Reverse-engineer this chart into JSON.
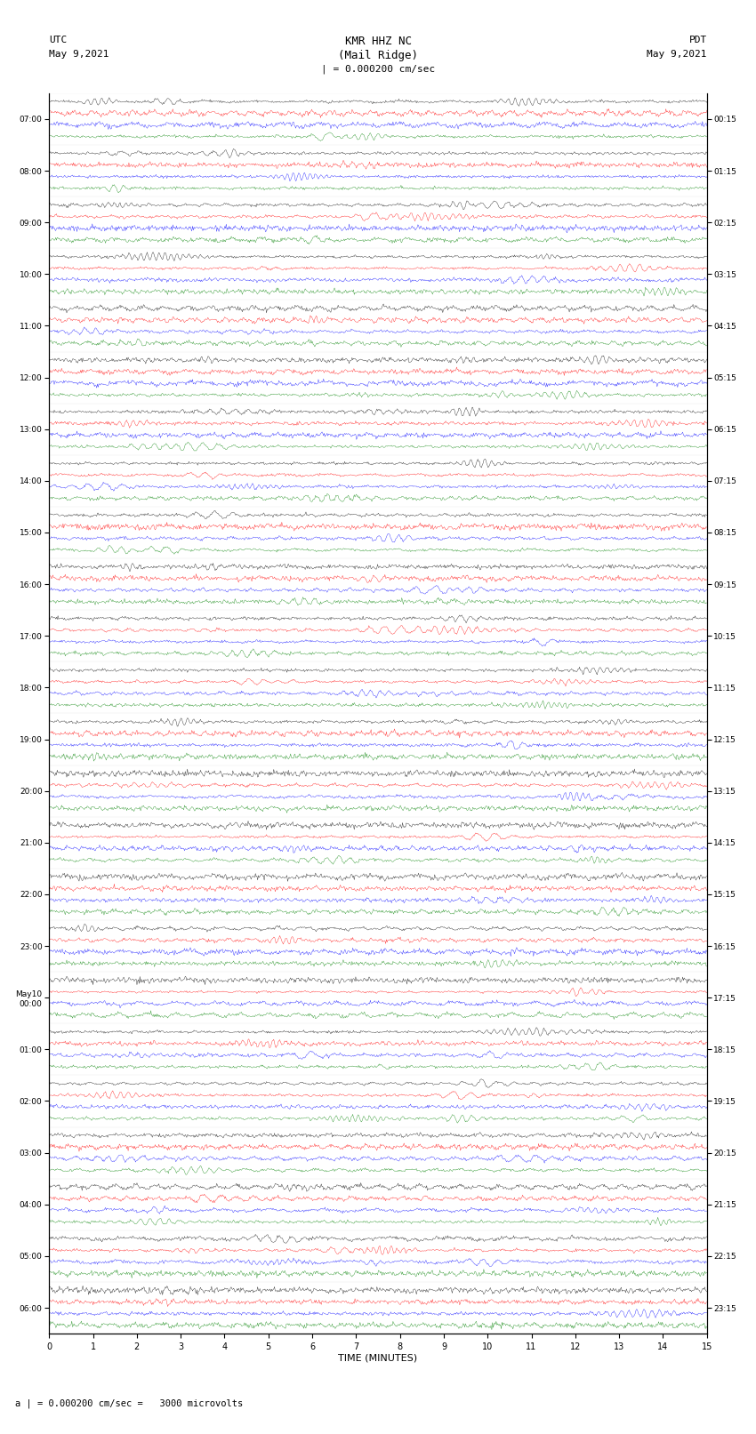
{
  "title_line1": "KMR HHZ NC",
  "title_line2": "(Mail Ridge)",
  "scale_label": "| = 0.000200 cm/sec",
  "left_label_top": "UTC",
  "left_label_date": "May 9,2021",
  "right_label_top": "PDT",
  "right_label_date": "May 9,2021",
  "xlabel": "TIME (MINUTES)",
  "footer": "a | = 0.000200 cm/sec =   3000 microvolts",
  "utc_times": [
    "07:00",
    "08:00",
    "09:00",
    "10:00",
    "11:00",
    "12:00",
    "13:00",
    "14:00",
    "15:00",
    "16:00",
    "17:00",
    "18:00",
    "19:00",
    "20:00",
    "21:00",
    "22:00",
    "23:00",
    "May10\n00:00",
    "01:00",
    "02:00",
    "03:00",
    "04:00",
    "05:00",
    "06:00"
  ],
  "pdt_times": [
    "00:15",
    "01:15",
    "02:15",
    "03:15",
    "04:15",
    "05:15",
    "06:15",
    "07:15",
    "08:15",
    "09:15",
    "10:15",
    "11:15",
    "12:15",
    "13:15",
    "14:15",
    "15:15",
    "16:15",
    "17:15",
    "18:15",
    "19:15",
    "20:15",
    "21:15",
    "22:15",
    "23:15"
  ],
  "n_rows": 24,
  "n_traces": 4,
  "trace_colors": [
    "black",
    "red",
    "blue",
    "green"
  ],
  "x_ticks": [
    0,
    1,
    2,
    3,
    4,
    5,
    6,
    7,
    8,
    9,
    10,
    11,
    12,
    13,
    14,
    15
  ],
  "xlim": [
    0,
    15
  ],
  "fig_width": 8.5,
  "fig_height": 16.13,
  "dpi": 100,
  "bg_color": "white",
  "amplitude": 0.35,
  "noise_amplitude": 0.08
}
